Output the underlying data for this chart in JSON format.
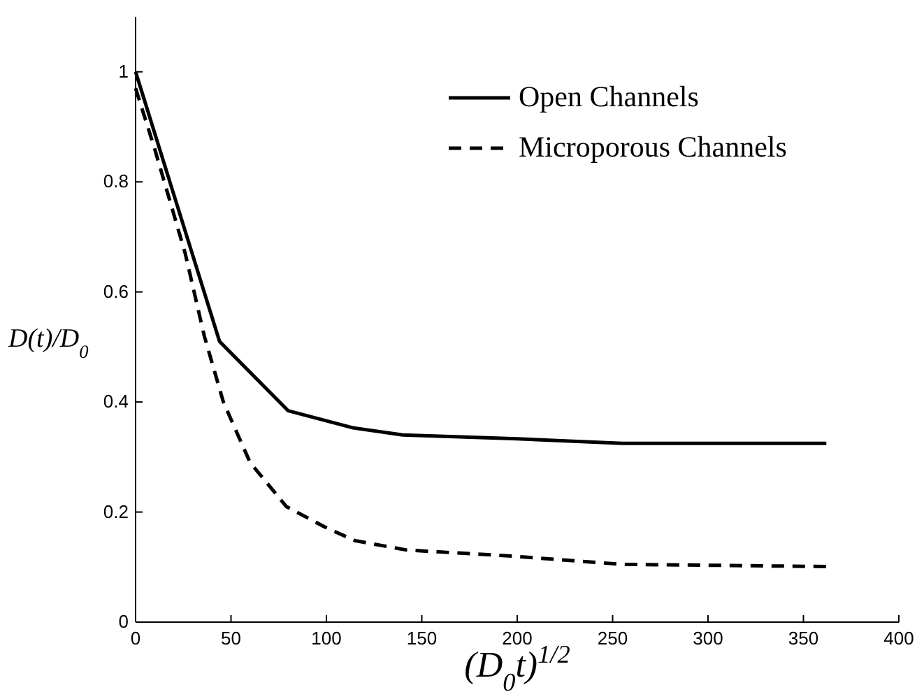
{
  "chart_data": {
    "type": "line",
    "xlabel": "(D$_{0}$t)$^{1/2}$",
    "ylabel": "D(t)/D$_{0}$",
    "xlim": [
      0,
      400
    ],
    "ylim": [
      0,
      1.1
    ],
    "xticks": [
      0,
      50,
      100,
      150,
      200,
      250,
      300,
      350,
      400
    ],
    "yticks": [
      0,
      0.2,
      0.4,
      0.6,
      0.8,
      1
    ],
    "legend": "top right",
    "grid": false,
    "series": [
      {
        "name": "Open Channels",
        "color": "#000000",
        "line_style": "solid",
        "x": [
          0,
          44,
          80,
          114,
          140,
          200,
          255,
          362
        ],
        "values": [
          1.0,
          0.51,
          0.384,
          0.353,
          0.34,
          0.333,
          0.325,
          0.325
        ]
      },
      {
        "name": "Microporous Channels",
        "color": "#000000",
        "line_style": "dashed",
        "x": [
          0,
          10,
          26,
          36,
          46,
          60,
          79,
          99,
          115,
          142,
          197,
          255,
          362
        ],
        "values": [
          0.97,
          0.86,
          0.67,
          0.52,
          0.4,
          0.29,
          0.21,
          0.173,
          0.148,
          0.131,
          0.12,
          0.105,
          0.101
        ]
      }
    ]
  }
}
